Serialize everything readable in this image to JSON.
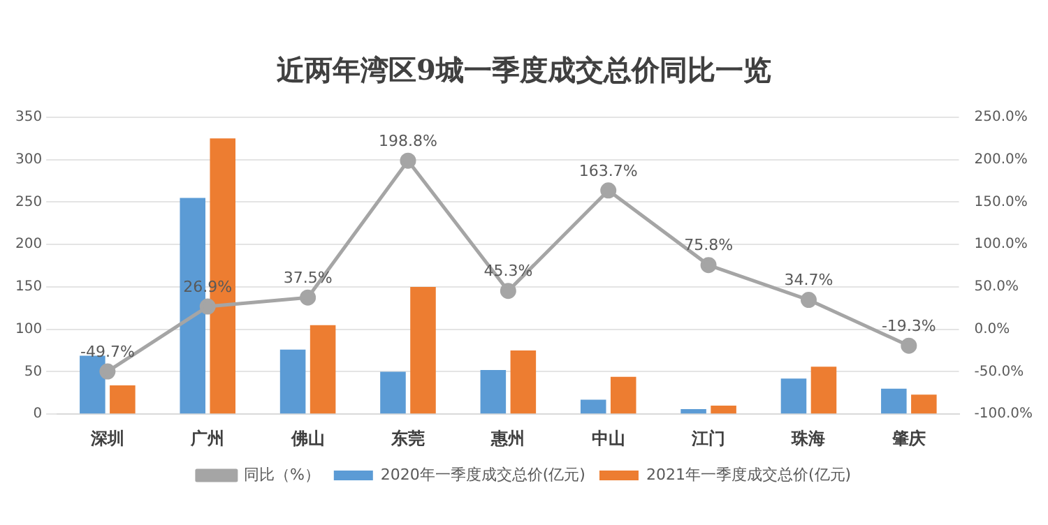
{
  "chart_data": {
    "type": "bar",
    "title": "近两年湾区9城一季度成交总价同比一览",
    "categories": [
      "深圳",
      "广州",
      "佛山",
      "东莞",
      "惠州",
      "中山",
      "江门",
      "珠海",
      "肇庆"
    ],
    "series": [
      {
        "name": "2020年一季度成交总价(亿元)",
        "color": "#5b9bd5",
        "values": [
          69,
          255,
          76,
          50,
          52,
          17,
          6,
          42,
          30
        ]
      },
      {
        "name": "2021年一季度成交总价(亿元)",
        "color": "#ed7d31",
        "values": [
          34,
          325,
          105,
          150,
          75,
          44,
          10,
          56,
          23
        ]
      },
      {
        "name": "同比（%）",
        "type": "line",
        "axis": "y2",
        "color": "#a5a5a5",
        "marker": "circle",
        "values": [
          -49.7,
          26.9,
          37.5,
          198.8,
          45.3,
          163.7,
          75.8,
          34.7,
          -19.3
        ],
        "value_labels": [
          "-49.7%",
          "26.9%",
          "37.5%",
          "198.8%",
          "45.3%",
          "163.7%",
          "75.8%",
          "34.7%",
          "-19.3%"
        ]
      }
    ],
    "ylim": [
      0,
      350
    ],
    "yticks": [
      0,
      50,
      100,
      150,
      200,
      250,
      300,
      350
    ],
    "y2lim": [
      -100,
      250
    ],
    "y2ticks": [
      {
        "value": -100,
        "label": "-100.0%"
      },
      {
        "value": -50,
        "label": "-50.0%"
      },
      {
        "value": 0,
        "label": "0.0%"
      },
      {
        "value": 50,
        "label": "50.0%"
      },
      {
        "value": 100,
        "label": "100.0%"
      },
      {
        "value": 150,
        "label": "150.0%"
      },
      {
        "value": 200,
        "label": "200.0%"
      },
      {
        "value": 250,
        "label": "250.0%"
      }
    ],
    "grid": "y",
    "legend": "bottom"
  }
}
